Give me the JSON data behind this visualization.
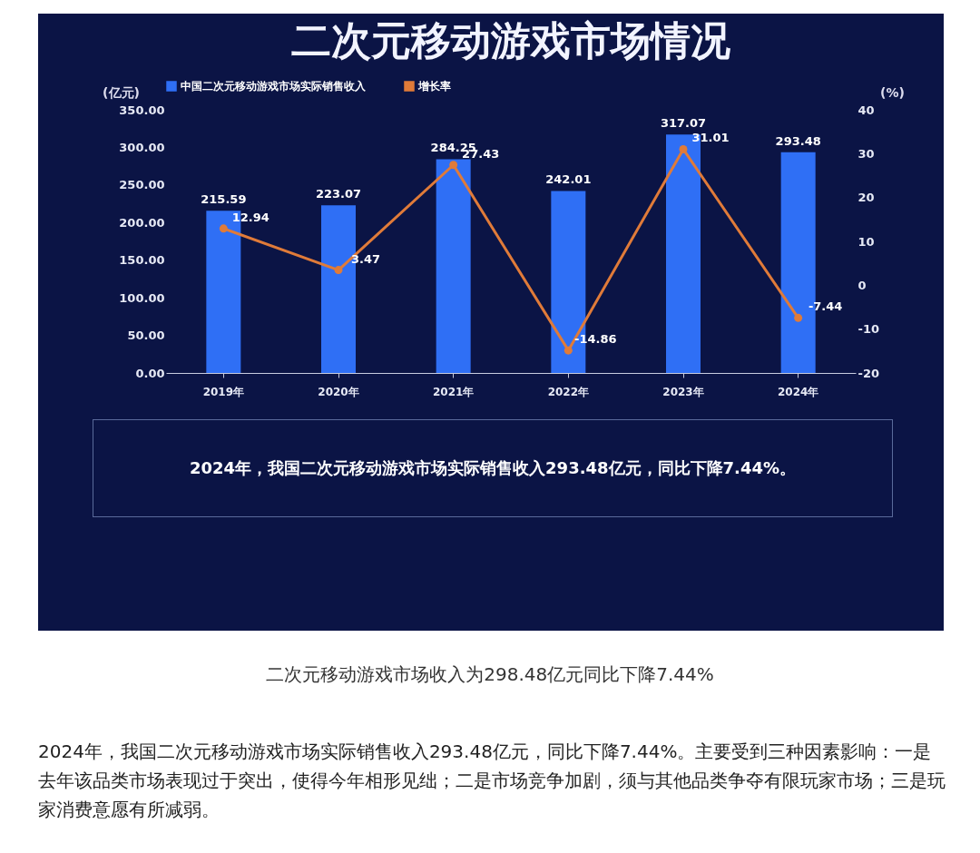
{
  "chart_data": {
    "type": "bar",
    "title": "二次元移动游戏市场情况",
    "categories": [
      "2019年",
      "2020年",
      "2021年",
      "2022年",
      "2023年",
      "2024年"
    ],
    "series": [
      {
        "name": "中国二次元移动游戏市场实际销售收入",
        "color": "#2f6ff5",
        "values": [
          215.59,
          223.07,
          284.25,
          242.01,
          317.07,
          293.48
        ]
      },
      {
        "name": "增长率",
        "type": "line",
        "axis": "y2",
        "color": "#e07b39",
        "values": [
          12.94,
          3.47,
          27.43,
          -14.86,
          31.01,
          -7.44
        ]
      }
    ],
    "ylabel": "(亿元)",
    "y2label": "(%)",
    "ylim": [
      0,
      350
    ],
    "yticks": [
      {
        "value": 0,
        "label": "0.00"
      },
      {
        "value": 50,
        "label": "50.00"
      },
      {
        "value": 100,
        "label": "100.00"
      },
      {
        "value": 150,
        "label": "150.00"
      },
      {
        "value": 200,
        "label": "200.00"
      },
      {
        "value": 250,
        "label": "250.00"
      },
      {
        "value": 300,
        "label": "300.00"
      },
      {
        "value": 350,
        "label": "350.00"
      }
    ],
    "y2lim": [
      -20,
      40
    ],
    "y2ticks": [
      -20,
      -10,
      0,
      10,
      20,
      30,
      40
    ],
    "data_labels": true,
    "legend": "top",
    "grid": false,
    "marker": "circle",
    "annotations": [
      "2024年，我国二次元移动游戏市场实际销售收入293.48亿元，同比下降7.44%。",
      "二次元移动游戏市场收入为298.48亿元同比下降7.44%",
      "2024年，我国二次元移动游戏市场实际销售收入293.48亿元，同比下降7.44%。主要受到三种因素影响：一是去年该品类市场表现过于突出，使得今年相形见绌；二是市场竞争加剧，须与其他品类争夺有限玩家市场；三是玩家消费意愿有所减弱。"
    ]
  }
}
